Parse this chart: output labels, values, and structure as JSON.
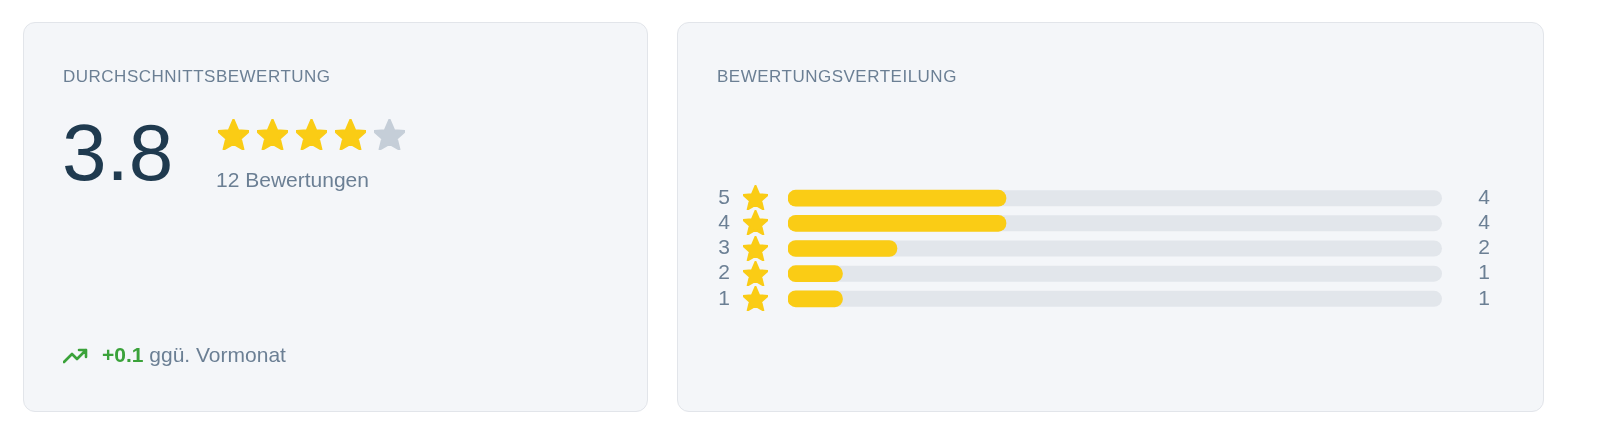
{
  "chart_data": [
    {
      "type": "other",
      "title": "DURCHSCHNITTSBEWERTUNG",
      "annotations": [
        "3.8",
        "12 Bewertungen",
        "+0.1",
        "ggü. Vormonat"
      ]
    },
    {
      "type": "bar",
      "orientation": "horizontal",
      "title": "BEWERTUNGSVERTEILUNG",
      "categories": [
        "5",
        "4",
        "3",
        "2",
        "1"
      ],
      "values": [
        4,
        4,
        2,
        1,
        1
      ],
      "color": "#facc15",
      "xlim": [
        0,
        12
      ],
      "data_labels": true,
      "tick_labels": "y",
      "legend": false
    }
  ]
}
